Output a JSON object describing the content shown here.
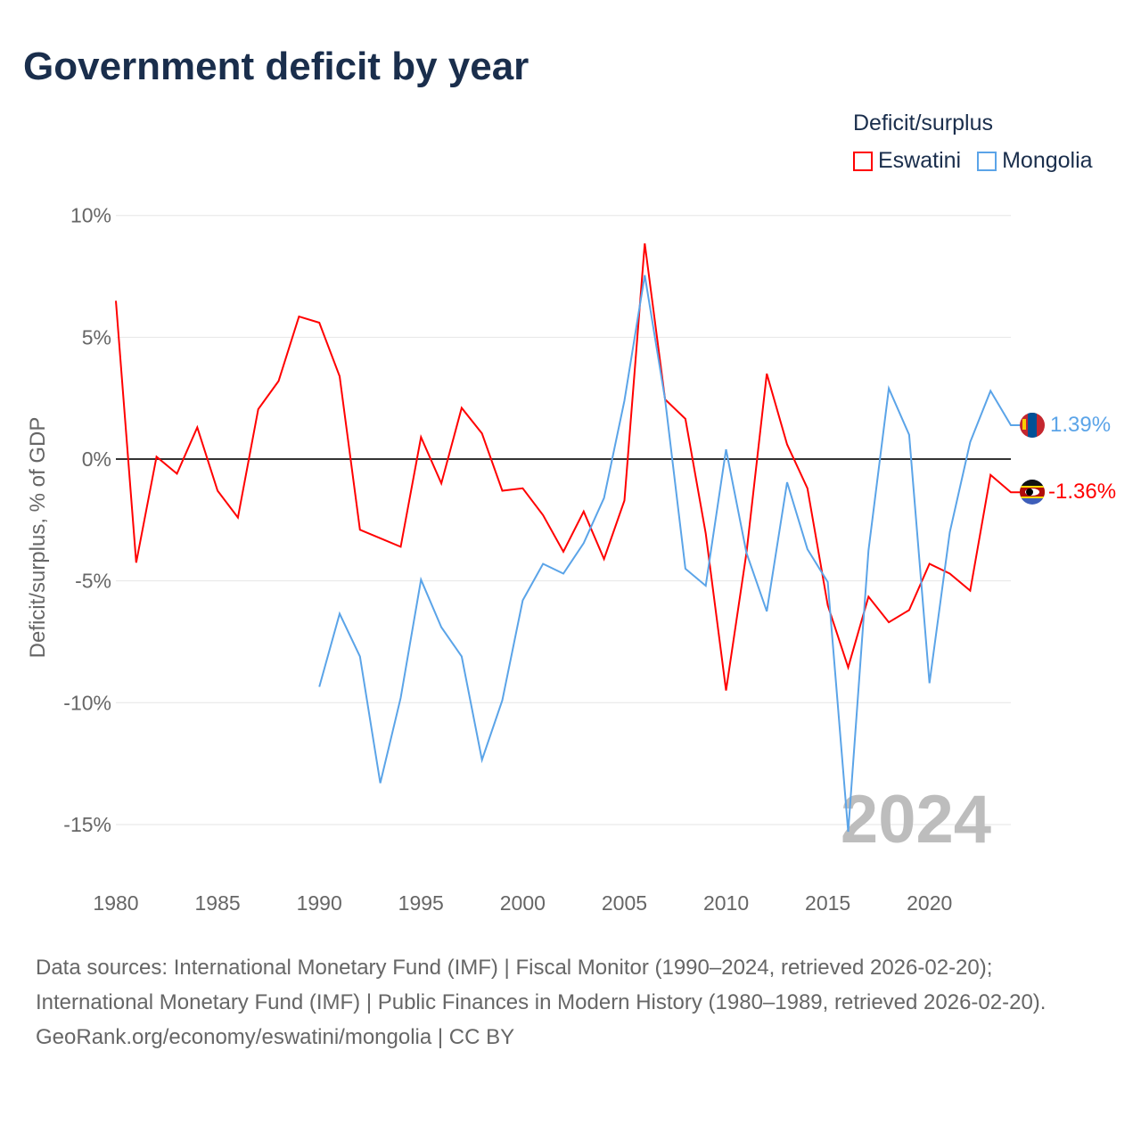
{
  "title": "Government deficit by year",
  "legend": {
    "title": "Deficit/surplus"
  },
  "colors": {
    "Eswatini": "#ff0000",
    "Mongolia": "#5ba4e8"
  },
  "year_watermark": "2024",
  "footer": {
    "sources": "Data sources: International Monetary Fund (IMF) | Fiscal Monitor (1990–2024, retrieved 2026-02-20); International Monetary Fund (IMF) | Public Finances in Modern History (1980–1989, retrieved 2026-02-20).",
    "link": "GeoRank.org/economy/eswatini/mongolia | CC BY"
  },
  "chart_data": {
    "type": "line",
    "title": "Government deficit by year",
    "xlabel": "",
    "ylabel": "Deficit/surplus, % of GDP",
    "xlim": [
      1980,
      2024
    ],
    "ylim": [
      -15,
      10
    ],
    "yticks": [
      10,
      5,
      0,
      -5,
      -10,
      -15
    ],
    "ytick_labels": [
      "10%",
      "5%",
      "0%",
      "-5%",
      "-10%",
      "-15%"
    ],
    "xticks": [
      1980,
      1985,
      1990,
      1995,
      2000,
      2005,
      2010,
      2015,
      2020
    ],
    "grid": true,
    "legend_position": "top-right",
    "series": [
      {
        "name": "Eswatini",
        "start": 1980,
        "end_label": "-1.36%",
        "values": [
          6.5,
          -4.25,
          0.1,
          -0.6,
          1.3,
          -1.3,
          -2.4,
          2.05,
          3.2,
          5.85,
          5.6,
          3.4,
          -2.9,
          -3.25,
          -3.6,
          0.9,
          -1.0,
          2.1,
          1.05,
          -1.3,
          -1.2,
          -2.3,
          -3.8,
          -2.15,
          -4.1,
          -1.7,
          8.85,
          2.45,
          1.65,
          -3.05,
          -9.5,
          -3.85,
          3.5,
          0.6,
          -1.2,
          -6.0,
          -8.55,
          -5.65,
          -6.7,
          -6.2,
          -4.3,
          -4.7,
          -5.4,
          -0.65,
          -1.36
        ]
      },
      {
        "name": "Mongolia",
        "start": 1990,
        "end_label": "1.39%",
        "values": [
          -9.35,
          -6.35,
          -8.1,
          -13.3,
          -9.8,
          -4.95,
          -6.9,
          -8.1,
          -12.35,
          -9.9,
          -5.8,
          -4.3,
          -4.7,
          -3.45,
          -1.6,
          2.4,
          7.55,
          2.45,
          -4.5,
          -5.2,
          0.4,
          -3.85,
          -6.25,
          -0.95,
          -3.7,
          -5.05,
          -15.3,
          -3.75,
          2.9,
          1.0,
          -9.2,
          -3.0,
          0.7,
          2.8,
          1.39
        ]
      }
    ]
  }
}
